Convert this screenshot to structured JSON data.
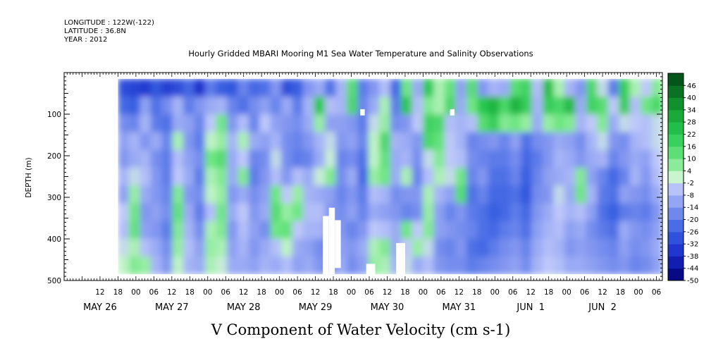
{
  "header": {
    "longitude": "LONGITUDE : 122W(-122)",
    "latitude": "LATITUDE : 36.8N",
    "year": "YEAR : 2012"
  },
  "chart_data": {
    "type": "heatmap",
    "title": "Hourly Gridded MBARI Mooring M1 Sea Water Temperature and Salinity Observations",
    "xlabel": "",
    "ylabel": "DEPTH (m)",
    "bottom_title": "V Component of Water Velocity (cm s-1)",
    "x_range_hours": [
      0,
      200
    ],
    "y_range_m": [
      500,
      0
    ],
    "y_ticks": [
      "100",
      "200",
      "300",
      "400",
      "500"
    ],
    "x_hour_ticks": [
      {
        "h": 12,
        "label": "12"
      },
      {
        "h": 18,
        "label": "18"
      },
      {
        "h": 24,
        "label": "00"
      },
      {
        "h": 30,
        "label": "06"
      },
      {
        "h": 36,
        "label": "12"
      },
      {
        "h": 42,
        "label": "18"
      },
      {
        "h": 48,
        "label": "00"
      },
      {
        "h": 54,
        "label": "06"
      },
      {
        "h": 60,
        "label": "12"
      },
      {
        "h": 66,
        "label": "18"
      },
      {
        "h": 72,
        "label": "00"
      },
      {
        "h": 78,
        "label": "06"
      },
      {
        "h": 84,
        "label": "12"
      },
      {
        "h": 90,
        "label": "18"
      },
      {
        "h": 96,
        "label": "00"
      },
      {
        "h": 102,
        "label": "06"
      },
      {
        "h": 108,
        "label": "12"
      },
      {
        "h": 114,
        "label": "18"
      },
      {
        "h": 120,
        "label": "00"
      },
      {
        "h": 126,
        "label": "06"
      },
      {
        "h": 132,
        "label": "12"
      },
      {
        "h": 138,
        "label": "18"
      },
      {
        "h": 144,
        "label": "00"
      },
      {
        "h": 150,
        "label": "06"
      },
      {
        "h": 156,
        "label": "12"
      },
      {
        "h": 162,
        "label": "18"
      },
      {
        "h": 168,
        "label": "00"
      },
      {
        "h": 174,
        "label": "06"
      },
      {
        "h": 180,
        "label": "12"
      },
      {
        "h": 186,
        "label": "18"
      },
      {
        "h": 192,
        "label": "00"
      },
      {
        "h": 198,
        "label": "06"
      }
    ],
    "x_date_labels": [
      {
        "h": 12,
        "label": "MAY 26"
      },
      {
        "h": 36,
        "label": "MAY 27"
      },
      {
        "h": 60,
        "label": "MAY 28"
      },
      {
        "h": 84,
        "label": "MAY 29"
      },
      {
        "h": 108,
        "label": "MAY 30"
      },
      {
        "h": 132,
        "label": "MAY 31"
      },
      {
        "h": 156,
        "label": "JUN  1"
      },
      {
        "h": 180,
        "label": "JUN  2"
      }
    ],
    "colorbar": {
      "min": -50,
      "max": 52,
      "step": 6,
      "tick_labels": [
        "46",
        "40",
        "34",
        "28",
        "22",
        "16",
        "10",
        "4",
        "-2",
        "-8",
        "-14",
        "-20",
        "-26",
        "-32",
        "-38",
        "-44",
        "-50"
      ]
    },
    "data_extent": {
      "x_start_hour": 18,
      "x_end_hour": 200,
      "depth_top_m": 15,
      "depth_bottom_m": 485
    },
    "gaps": [
      {
        "x0": 88.5,
        "x1": 90.5,
        "d0": 325,
        "d1": 485
      },
      {
        "x0": 86.5,
        "x1": 88.5,
        "d0": 345,
        "d1": 485
      },
      {
        "x0": 90.5,
        "x1": 92.5,
        "d0": 355,
        "d1": 470
      },
      {
        "x0": 111,
        "x1": 114,
        "d0": 410,
        "d1": 485
      },
      {
        "x0": 101,
        "x1": 104,
        "d0": 460,
        "d1": 485
      },
      {
        "x0": 99,
        "x1": 100.5,
        "d0": 88,
        "d1": 103
      },
      {
        "x0": 129,
        "x1": 130.5,
        "d0": 88,
        "d1": 103
      }
    ],
    "value_field": [
      [
        -30,
        -32,
        -34,
        -28,
        -33,
        -30,
        -24,
        -36,
        -20,
        -26,
        -28,
        -18,
        -24,
        -22,
        -14,
        -30,
        -26,
        -14,
        -10,
        -22,
        -8,
        14,
        -20,
        -14,
        -6,
        -24,
        10,
        -10,
        22,
        4,
        12,
        -12,
        14,
        -14,
        -8,
        -10,
        14,
        18,
        -6,
        26,
        4,
        -8,
        -14,
        16,
        -2,
        -20,
        20,
        4,
        -4,
        8
      ],
      [
        -24,
        -26,
        -12,
        -22,
        -16,
        -8,
        -20,
        -14,
        -10,
        -8,
        -18,
        -22,
        -16,
        -12,
        -18,
        -10,
        -20,
        -8,
        22,
        -6,
        -8,
        16,
        -18,
        -10,
        4,
        -20,
        22,
        -6,
        8,
        4,
        16,
        -10,
        10,
        22,
        28,
        16,
        28,
        20,
        -8,
        20,
        16,
        26,
        -10,
        18,
        14,
        -4,
        20,
        -6,
        10,
        16
      ],
      [
        -16,
        -18,
        -8,
        -20,
        -22,
        -10,
        -12,
        -18,
        -4,
        10,
        -14,
        -6,
        -18,
        -4,
        -12,
        -14,
        -16,
        -10,
        6,
        -12,
        -12,
        -14,
        -20,
        -2,
        6,
        -16,
        -14,
        -4,
        18,
        16,
        -6,
        -8,
        -6,
        14,
        20,
        8,
        10,
        6,
        -10,
        6,
        10,
        8,
        -8,
        -4,
        8,
        -10,
        -2,
        -4,
        -6,
        -2
      ],
      [
        -12,
        -8,
        -14,
        -10,
        -18,
        4,
        -14,
        -20,
        2,
        6,
        -8,
        4,
        -10,
        -12,
        -8,
        -16,
        -18,
        -14,
        -8,
        -2,
        -14,
        -12,
        -18,
        2,
        16,
        -8,
        -10,
        -14,
        16,
        12,
        -4,
        -8,
        -18,
        -16,
        -14,
        -18,
        -12,
        -22,
        -16,
        -14,
        -10,
        -12,
        -16,
        -8,
        -2,
        -14,
        -16,
        -8,
        -6,
        -2
      ],
      [
        -14,
        -10,
        -8,
        -16,
        -20,
        -6,
        -12,
        -16,
        10,
        14,
        -10,
        -4,
        -18,
        -16,
        -2,
        -16,
        -20,
        -18,
        -10,
        0,
        -18,
        -16,
        -22,
        2,
        12,
        -10,
        -8,
        -16,
        -2,
        8,
        -4,
        -6,
        -16,
        -18,
        -20,
        -20,
        -16,
        -24,
        -20,
        -14,
        -8,
        -10,
        -14,
        -10,
        -8,
        -18,
        -14,
        -10,
        -12,
        -4
      ],
      [
        -8,
        -2,
        -6,
        -14,
        -20,
        -4,
        -10,
        -20,
        4,
        8,
        -10,
        8,
        -20,
        -14,
        -6,
        -14,
        -6,
        -10,
        0,
        8,
        -16,
        -10,
        -24,
        6,
        10,
        -10,
        4,
        -18,
        -6,
        4,
        -2,
        10,
        -18,
        -14,
        -22,
        -22,
        -18,
        -26,
        -18,
        -12,
        -10,
        -8,
        8,
        -12,
        -18,
        -24,
        -18,
        -8,
        -14,
        -6
      ],
      [
        -12,
        6,
        -10,
        -14,
        -18,
        8,
        -14,
        -16,
        2,
        6,
        -14,
        -10,
        -16,
        -12,
        10,
        -4,
        6,
        -8,
        -10,
        -12,
        -18,
        -14,
        -20,
        -6,
        -8,
        -16,
        -14,
        -14,
        4,
        -8,
        -12,
        14,
        -22,
        -18,
        -24,
        -24,
        -22,
        -28,
        -16,
        -14,
        -2,
        -10,
        10,
        -8,
        -20,
        -22,
        -12,
        -14,
        -16,
        -10
      ],
      [
        -4,
        10,
        -14,
        -12,
        -16,
        12,
        -10,
        -20,
        -6,
        10,
        -10,
        -4,
        -14,
        -10,
        14,
        6,
        10,
        -6,
        -6,
        -14,
        -16,
        -12,
        -18,
        -10,
        -12,
        -14,
        -18,
        -16,
        6,
        -12,
        -18,
        -14,
        -20,
        -22,
        -26,
        -24,
        -20,
        -24,
        -14,
        -10,
        -4,
        -8,
        -6,
        -12,
        -22,
        -26,
        -20,
        -18,
        -20,
        -14
      ],
      [
        -6,
        12,
        -12,
        -14,
        -20,
        8,
        -8,
        -16,
        4,
        8,
        -14,
        -6,
        -12,
        -16,
        10,
        12,
        -4,
        -8,
        -8,
        -16,
        -14,
        -18,
        -14,
        -4,
        -6,
        -10,
        10,
        -4,
        8,
        -12,
        -14,
        -16,
        -18,
        -22,
        -24,
        -20,
        -18,
        -22,
        -12,
        -8,
        -6,
        -12,
        -10,
        -16,
        -20,
        -22,
        -10,
        -14,
        -16,
        -12
      ],
      [
        -2,
        4,
        -6,
        -10,
        -16,
        6,
        -6,
        -12,
        6,
        4,
        -12,
        -8,
        -14,
        -10,
        -6,
        2,
        -10,
        -12,
        -16,
        -20,
        -12,
        -14,
        -10,
        4,
        8,
        -10,
        -4,
        6,
        -2,
        -16,
        -18,
        -14,
        -22,
        -24,
        -20,
        -16,
        -14,
        -18,
        -10,
        -6,
        -8,
        -14,
        -12,
        -14,
        -16,
        -18,
        -12,
        -16,
        -14,
        -10
      ],
      [
        2,
        8,
        6,
        -8,
        -14,
        2,
        -8,
        -10,
        4,
        0,
        -10,
        -10,
        -12,
        -8,
        -10,
        -6,
        -12,
        -10,
        -14,
        -18,
        -10,
        -16,
        -12,
        6,
        4,
        -8,
        -2,
        -10,
        -6,
        -14,
        -16,
        -16,
        -20,
        -18,
        -16,
        -14,
        -12,
        -16,
        -8,
        -4,
        -6,
        -10,
        -10,
        -12,
        -14,
        -16,
        -14,
        -18,
        -16,
        -12
      ]
    ]
  }
}
